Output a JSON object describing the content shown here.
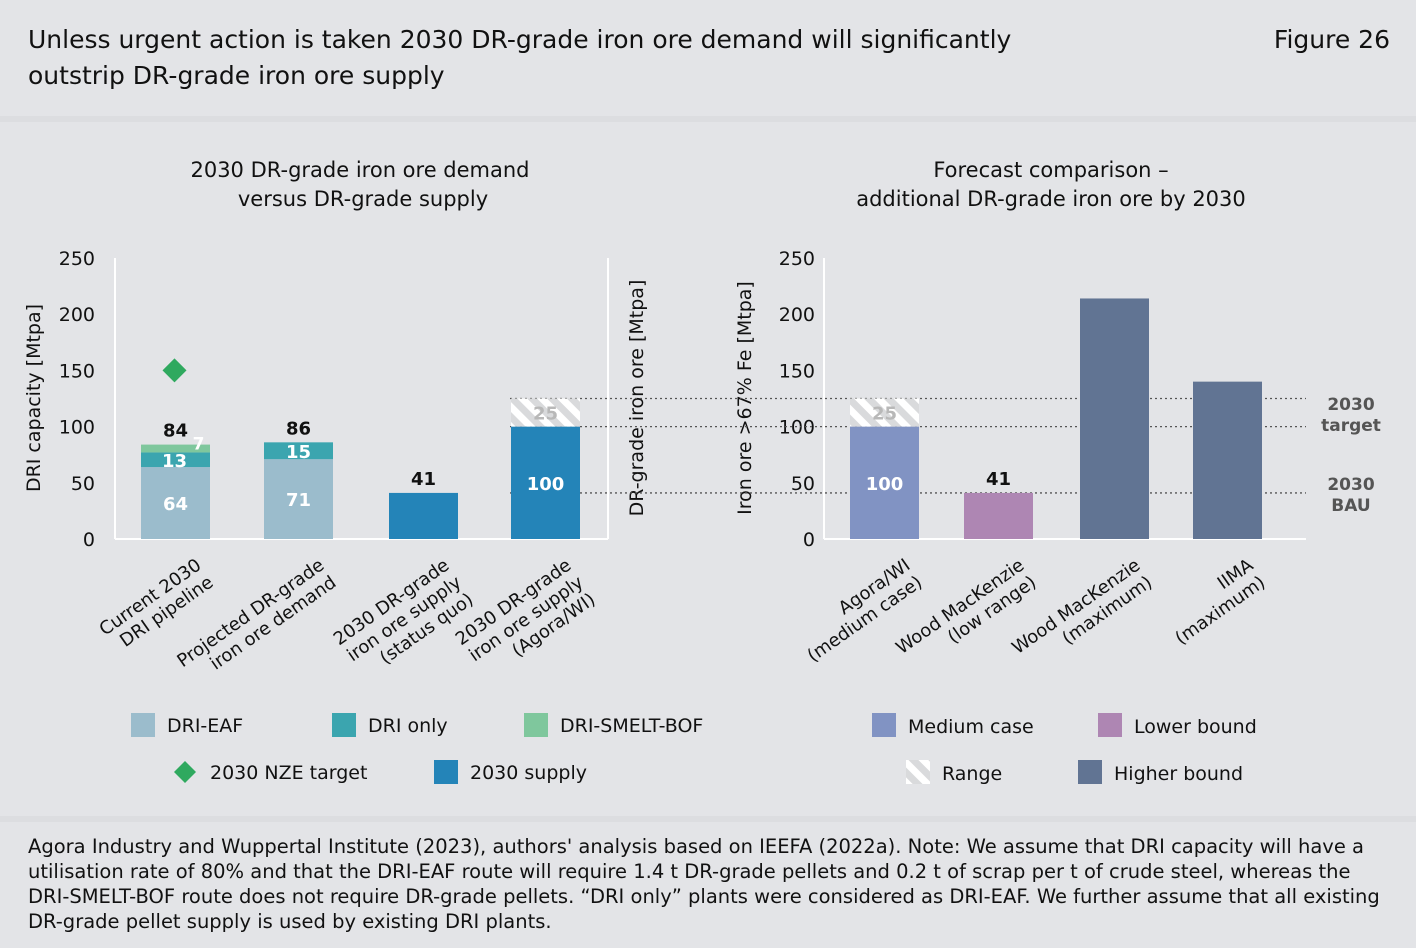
{
  "header": {
    "title_line1": "Unless urgent action is taken 2030 DR-grade iron ore demand will significantly",
    "title_line2": "outstrip DR-grade iron ore supply",
    "figure_label": "Figure 26"
  },
  "footer": {
    "source_line1": "Agora Industry and Wuppertal Institute (2023), authors' analysis based on IEEFA (2022a). Note: We assume that DRI capacity will have a",
    "source_line2": "utilisation rate of 80% and that the DRI-EAF route will require 1.4 t DR-grade pellets and 0.2 t of scrap per t of crude steel, whereas the",
    "source_line3": "DRI-SMELT-BOF route does not require DR-grade pellets. “DRI only” plants were considered as DRI-EAF. We further assume that all existing",
    "source_line4": "DR-grade pellet supply is used by existing DRI plants."
  },
  "colors": {
    "dri_eaf": "#9bbccc",
    "dri_only": "#3ba5af",
    "dri_smelt_bof": "#7fc79d",
    "nze_target": "#2fa95f",
    "supply": "#2484b8",
    "medium_case": "#8193c3",
    "lower_bound": "#ae86b3",
    "higher_bound": "#617493",
    "range_hatch": "#ffffff"
  },
  "chart_data": [
    {
      "type": "bar",
      "subtype": "stacked",
      "title_line1": "2030 DR-grade iron ore demand",
      "title_line2": "versus DR-grade supply",
      "ylabel": "DRI capacity [Mtpa]",
      "ylabel_right": "DR-grade iron ore [Mtpa]",
      "ylim": [
        0,
        250
      ],
      "yticks": [
        0,
        50,
        100,
        150,
        200,
        250
      ],
      "categories": [
        [
          "Current 2030",
          "DRI pipeline"
        ],
        [
          "Projected DR-grade",
          "iron ore demand"
        ],
        [
          "2030 DR-grade",
          "iron ore supply",
          "(status quo)"
        ],
        [
          "2030 DR-grade",
          "iron ore supply",
          "(Agora/WI)"
        ]
      ],
      "series": [
        {
          "name": "DRI-EAF",
          "values": [
            64,
            71,
            null,
            null
          ],
          "labels": [
            "64",
            "71",
            "",
            ""
          ]
        },
        {
          "name": "DRI only",
          "values": [
            13,
            15,
            null,
            null
          ],
          "labels": [
            "13",
            "15",
            "",
            ""
          ]
        },
        {
          "name": "DRI-SMELT-BOF",
          "values": [
            7,
            null,
            null,
            null
          ],
          "labels": [
            "7",
            "",
            "",
            ""
          ]
        },
        {
          "name": "2030 supply",
          "values": [
            null,
            null,
            41,
            100
          ],
          "labels": [
            "",
            "",
            "",
            "100"
          ]
        },
        {
          "name": "Range",
          "values": [
            null,
            null,
            null,
            25
          ],
          "labels": [
            "",
            "",
            "",
            "25"
          ]
        }
      ],
      "totals": [
        "84",
        "86",
        "41",
        ""
      ],
      "nze_target": {
        "category_index": 0,
        "value": 150
      },
      "legend": [
        {
          "label": "DRI-EAF",
          "key": "dri_eaf"
        },
        {
          "label": "DRI only",
          "key": "dri_only"
        },
        {
          "label": "DRI-SMELT-BOF",
          "key": "dri_smelt_bof"
        },
        {
          "label": "2030 NZE target",
          "key": "nze_target"
        },
        {
          "label": "2030 supply",
          "key": "supply"
        }
      ]
    },
    {
      "type": "bar",
      "title_line1": "Forecast comparison –",
      "title_line2": "additional DR-grade iron ore by 2030",
      "ylabel": "Iron ore >67% Fe [Mtpa]",
      "ylim": [
        0,
        250
      ],
      "yticks": [
        0,
        50,
        100,
        150,
        200,
        250
      ],
      "categories": [
        [
          "Agora/WI",
          "(medium case)"
        ],
        [
          "Wood MacKenzie",
          "(low range)"
        ],
        [
          "Wood MacKenzie",
          "(maximum)"
        ],
        [
          "IIMA",
          "(maximum)"
        ]
      ],
      "bars": [
        {
          "value": 100,
          "range": 25,
          "kind": "medium_case",
          "label": "100",
          "range_label": "25"
        },
        {
          "value": 41,
          "range": 0,
          "kind": "lower_bound",
          "label": "41",
          "range_label": ""
        },
        {
          "value": 214,
          "range": 0,
          "kind": "higher_bound",
          "label": "",
          "range_label": ""
        },
        {
          "value": 140,
          "range": 0,
          "kind": "higher_bound",
          "label": "",
          "range_label": ""
        }
      ],
      "reference_lines": [
        {
          "value": 125,
          "label": ""
        },
        {
          "value": 100,
          "label": ""
        },
        {
          "value": 41,
          "label": ""
        }
      ],
      "annotations": [
        {
          "text_line1": "2030",
          "text_line2": "target"
        },
        {
          "text_line1": "2030",
          "text_line2": "BAU"
        }
      ],
      "legend": [
        {
          "label": "Medium case",
          "key": "medium_case"
        },
        {
          "label": "Lower bound",
          "key": "lower_bound"
        },
        {
          "label": "Range",
          "key": "range_hatch"
        },
        {
          "label": "Higher bound",
          "key": "higher_bound"
        }
      ]
    }
  ]
}
